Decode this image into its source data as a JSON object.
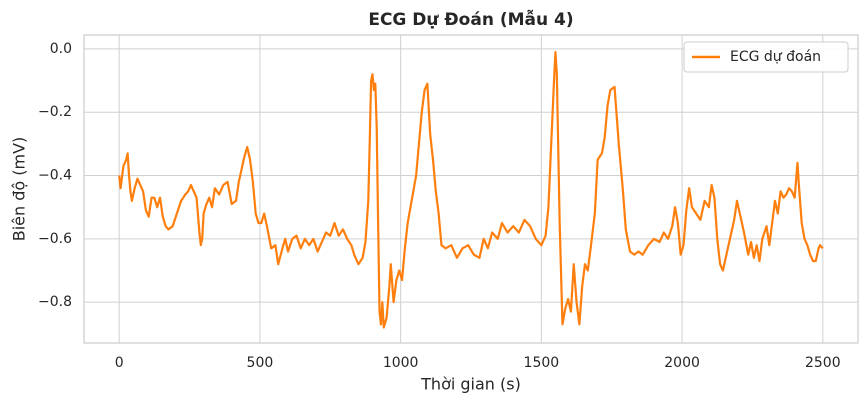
{
  "chart_data": {
    "type": "line",
    "title": "ECG Dự Đoán (Mẫu 4)",
    "xlabel": "Thời gian (s)",
    "ylabel": "Biên độ (mV)",
    "grid": true,
    "legend": "upper right",
    "xlim": [
      -125,
      2625
    ],
    "ylim": [
      -0.929,
      0.044
    ],
    "xticks": [
      0,
      500,
      1000,
      1500,
      2000,
      2500
    ],
    "yticks": [
      {
        "value": -0.8,
        "label": "−0.8"
      },
      {
        "value": -0.6,
        "label": "−0.6"
      },
      {
        "value": -0.4,
        "label": "−0.4"
      },
      {
        "value": -0.2,
        "label": "−0.2"
      },
      {
        "value": 0.0,
        "label": "0.0"
      }
    ],
    "x": [
      0,
      5,
      15,
      25,
      30,
      35,
      40,
      45,
      55,
      65,
      75,
      85,
      95,
      105,
      115,
      125,
      135,
      145,
      155,
      165,
      175,
      190,
      205,
      220,
      235,
      245,
      255,
      265,
      275,
      285,
      290,
      295,
      300,
      310,
      320,
      330,
      340,
      355,
      370,
      385,
      400,
      415,
      425,
      435,
      445,
      455,
      465,
      475,
      485,
      495,
      505,
      515,
      525,
      540,
      555,
      565,
      580,
      590,
      600,
      615,
      630,
      645,
      660,
      675,
      690,
      705,
      720,
      735,
      750,
      765,
      780,
      795,
      810,
      825,
      835,
      850,
      865,
      875,
      885,
      890,
      895,
      900,
      905,
      910,
      915,
      920,
      925,
      930,
      935,
      940,
      950,
      960,
      965,
      975,
      985,
      995,
      1005,
      1015,
      1025,
      1035,
      1045,
      1055,
      1065,
      1075,
      1085,
      1095,
      1105,
      1115,
      1125,
      1135,
      1145,
      1160,
      1180,
      1200,
      1220,
      1240,
      1260,
      1280,
      1295,
      1310,
      1325,
      1345,
      1360,
      1380,
      1400,
      1420,
      1440,
      1460,
      1480,
      1500,
      1515,
      1525,
      1535,
      1545,
      1550,
      1555,
      1565,
      1575,
      1585,
      1595,
      1605,
      1615,
      1625,
      1635,
      1645,
      1655,
      1665,
      1675,
      1690,
      1700,
      1715,
      1725,
      1735,
      1745,
      1760,
      1775,
      1790,
      1800,
      1815,
      1830,
      1845,
      1860,
      1880,
      1900,
      1920,
      1935,
      1950,
      1965,
      1975,
      1985,
      1995,
      2005,
      2015,
      2025,
      2035,
      2050,
      2065,
      2080,
      2095,
      2105,
      2115,
      2125,
      2135,
      2145,
      2160,
      2175,
      2185,
      2195,
      2205,
      2220,
      2235,
      2245,
      2255,
      2265,
      2275,
      2285,
      2300,
      2310,
      2320,
      2330,
      2340,
      2350,
      2360,
      2370,
      2380,
      2390,
      2400,
      2410,
      2415,
      2425,
      2435,
      2445,
      2455,
      2465,
      2475,
      2485,
      2490,
      2500
    ],
    "series": [
      {
        "name": "ECG dự đoán",
        "color": "#ff7f0e",
        "values": [
          -0.4,
          -0.44,
          -0.37,
          -0.35,
          -0.33,
          -0.4,
          -0.45,
          -0.48,
          -0.44,
          -0.41,
          -0.43,
          -0.45,
          -0.51,
          -0.53,
          -0.47,
          -0.47,
          -0.5,
          -0.47,
          -0.53,
          -0.56,
          -0.57,
          -0.56,
          -0.52,
          -0.48,
          -0.46,
          -0.45,
          -0.43,
          -0.45,
          -0.47,
          -0.58,
          -0.62,
          -0.6,
          -0.52,
          -0.49,
          -0.47,
          -0.5,
          -0.44,
          -0.46,
          -0.43,
          -0.42,
          -0.49,
          -0.48,
          -0.42,
          -0.38,
          -0.34,
          -0.31,
          -0.35,
          -0.42,
          -0.52,
          -0.55,
          -0.55,
          -0.52,
          -0.56,
          -0.63,
          -0.62,
          -0.68,
          -0.63,
          -0.6,
          -0.64,
          -0.6,
          -0.59,
          -0.63,
          -0.6,
          -0.62,
          -0.6,
          -0.64,
          -0.61,
          -0.58,
          -0.59,
          -0.55,
          -0.59,
          -0.57,
          -0.6,
          -0.62,
          -0.65,
          -0.68,
          -0.66,
          -0.61,
          -0.48,
          -0.3,
          -0.1,
          -0.08,
          -0.13,
          -0.11,
          -0.25,
          -0.55,
          -0.83,
          -0.87,
          -0.8,
          -0.88,
          -0.85,
          -0.75,
          -0.68,
          -0.8,
          -0.73,
          -0.7,
          -0.73,
          -0.63,
          -0.55,
          -0.5,
          -0.45,
          -0.4,
          -0.3,
          -0.2,
          -0.13,
          -0.11,
          -0.27,
          -0.35,
          -0.45,
          -0.52,
          -0.62,
          -0.63,
          -0.62,
          -0.66,
          -0.63,
          -0.62,
          -0.65,
          -0.66,
          -0.6,
          -0.63,
          -0.58,
          -0.6,
          -0.55,
          -0.58,
          -0.56,
          -0.58,
          -0.54,
          -0.56,
          -0.6,
          -0.62,
          -0.59,
          -0.5,
          -0.3,
          -0.1,
          -0.01,
          -0.08,
          -0.55,
          -0.87,
          -0.82,
          -0.79,
          -0.83,
          -0.68,
          -0.8,
          -0.87,
          -0.75,
          -0.68,
          -0.7,
          -0.63,
          -0.52,
          -0.35,
          -0.33,
          -0.28,
          -0.18,
          -0.13,
          -0.12,
          -0.3,
          -0.45,
          -0.57,
          -0.64,
          -0.65,
          -0.64,
          -0.65,
          -0.62,
          -0.6,
          -0.61,
          -0.58,
          -0.6,
          -0.56,
          -0.5,
          -0.55,
          -0.65,
          -0.62,
          -0.51,
          -0.44,
          -0.5,
          -0.52,
          -0.54,
          -0.48,
          -0.5,
          -0.43,
          -0.47,
          -0.6,
          -0.68,
          -0.7,
          -0.64,
          -0.58,
          -0.54,
          -0.48,
          -0.52,
          -0.58,
          -0.65,
          -0.61,
          -0.66,
          -0.62,
          -0.67,
          -0.6,
          -0.56,
          -0.62,
          -0.55,
          -0.48,
          -0.52,
          -0.45,
          -0.47,
          -0.46,
          -0.44,
          -0.45,
          -0.47,
          -0.36,
          -0.43,
          -0.55,
          -0.6,
          -0.62,
          -0.65,
          -0.67,
          -0.67,
          -0.63,
          -0.62,
          -0.63
        ]
      }
    ]
  }
}
